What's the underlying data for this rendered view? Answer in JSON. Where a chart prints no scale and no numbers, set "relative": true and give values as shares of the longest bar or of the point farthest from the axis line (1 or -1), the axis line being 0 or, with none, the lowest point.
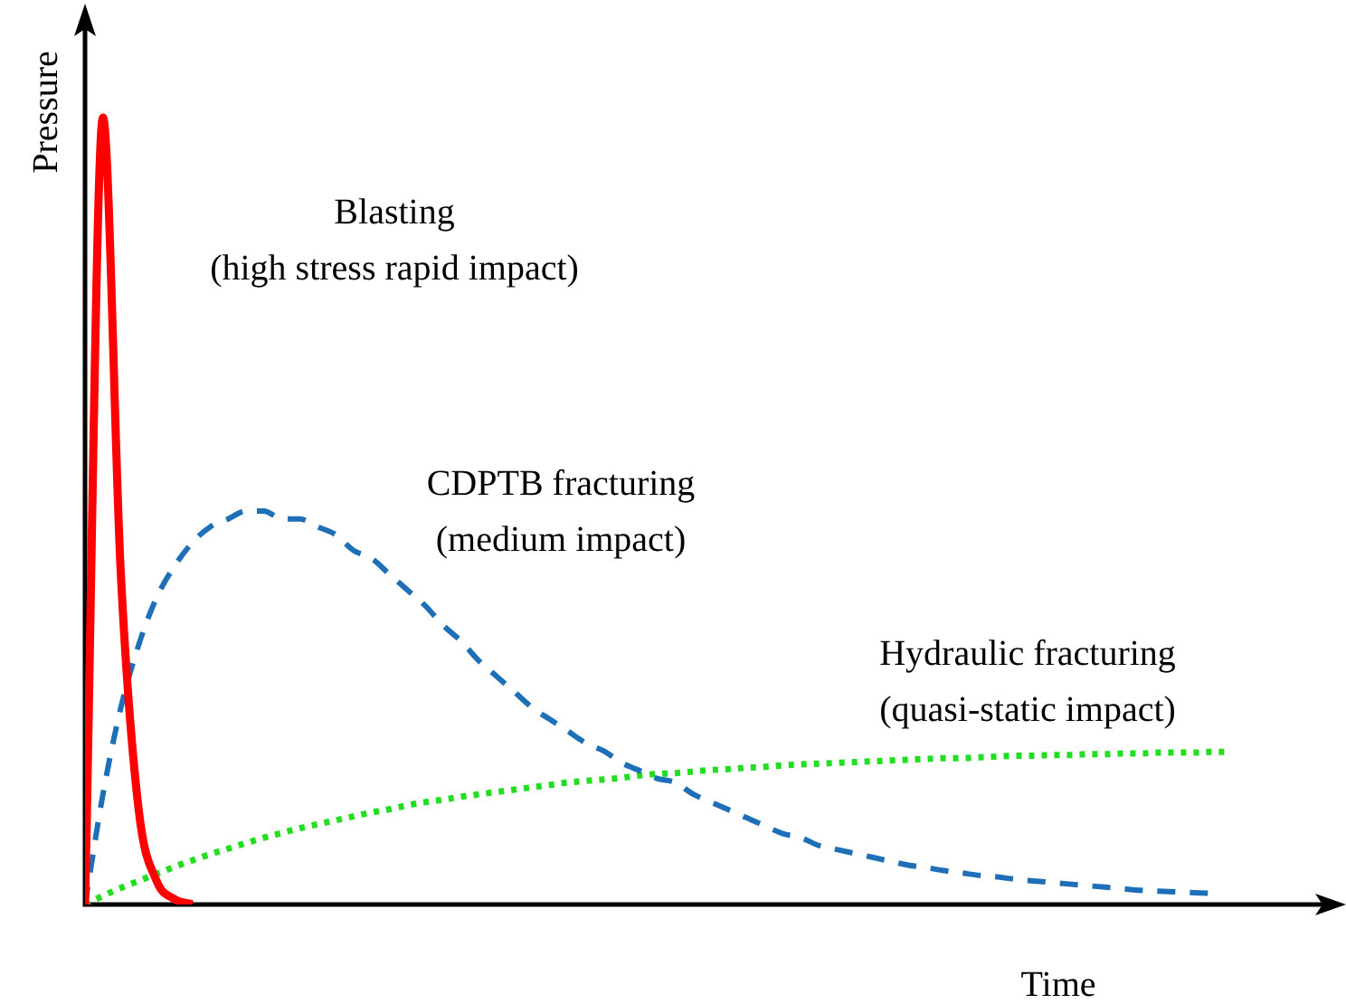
{
  "chart_data": {
    "type": "line",
    "relative": true,
    "xlabel": "Time",
    "ylabel": "Pressure",
    "categories": [
      null,
      null,
      null,
      null,
      null,
      null,
      null,
      null,
      null,
      null,
      null,
      null,
      null,
      null,
      null,
      null,
      null,
      null,
      null,
      null,
      null,
      null,
      null,
      null,
      null,
      null,
      null,
      null,
      null,
      null,
      null,
      null,
      null,
      null,
      null,
      null,
      null,
      null,
      null,
      null,
      null,
      null,
      null,
      null,
      null,
      null,
      null,
      null,
      null,
      null,
      null,
      null,
      null,
      null,
      null,
      null,
      null,
      null,
      null,
      null,
      null,
      null,
      null,
      null,
      null
    ],
    "series": [
      {
        "name": "Blasting\n(high stress rapid impact)",
        "color": "#ff0000",
        "line_style": "solid",
        "values": [
          0,
          1,
          0.42,
          0.12,
          0.03,
          0.007,
          0,
          null,
          null,
          null,
          null,
          null,
          null,
          null,
          null,
          null,
          null,
          null,
          null,
          null,
          null,
          null,
          null,
          null,
          null,
          null,
          null,
          null,
          null,
          null,
          null,
          null,
          null,
          null,
          null,
          null,
          null,
          null,
          null,
          null,
          null,
          null,
          null,
          null,
          null,
          null,
          null,
          null,
          null,
          null,
          null,
          null,
          null,
          null,
          null,
          null,
          null,
          null,
          null,
          null,
          null,
          null,
          null,
          null,
          null
        ]
      },
      {
        "name": "CDPTB fracturing\n(medium impact)",
        "color": "#1f6fb8",
        "line_style": "dashed",
        "values": [
          0,
          0.14,
          0.25,
          0.33,
          0.39,
          0.43,
          0.46,
          0.48,
          0.49,
          0.5,
          0.5,
          0.49,
          0.49,
          0.48,
          0.47,
          0.45,
          0.44,
          0.42,
          0.4,
          0.38,
          0.355,
          0.335,
          0.31,
          0.29,
          0.27,
          0.25,
          0.235,
          0.22,
          0.205,
          0.195,
          0.18,
          0.17,
          0.16,
          0.155,
          0.14,
          0.13,
          0.12,
          0.11,
          0.1,
          0.09,
          0.085,
          0.075,
          0.07,
          0.065,
          0.06,
          0.055,
          0.05,
          0.047,
          0.043,
          0.04,
          0.037,
          0.035,
          0.032,
          0.03,
          0.028,
          0.026,
          0.024,
          0.022,
          0.02,
          0.018,
          0.017,
          0.016,
          0.015,
          0.014,
          null
        ]
      },
      {
        "name": "Hydraulic fracturing\n(quasi-static impact)",
        "color": "#22dd22",
        "line_style": "dotted",
        "values": [
          0,
          0.011,
          0.021,
          0.03,
          0.039,
          0.048,
          0.056,
          0.064,
          0.071,
          0.078,
          0.085,
          0.091,
          0.097,
          0.102,
          0.107,
          0.112,
          0.117,
          0.121,
          0.126,
          0.13,
          0.133,
          0.137,
          0.14,
          0.143,
          0.146,
          0.149,
          0.152,
          0.155,
          0.157,
          0.159,
          0.161,
          0.164,
          0.166,
          0.167,
          0.169,
          0.171,
          0.172,
          0.174,
          0.175,
          0.177,
          0.178,
          0.179,
          0.18,
          0.181,
          0.182,
          0.183,
          0.184,
          0.185,
          0.186,
          0.186,
          0.187,
          0.188,
          0.189,
          0.189,
          0.19,
          0.19,
          0.191,
          0.191,
          0.192,
          0.192,
          0.193,
          0.193,
          0.193,
          0.194,
          0.194
        ]
      }
    ]
  }
}
